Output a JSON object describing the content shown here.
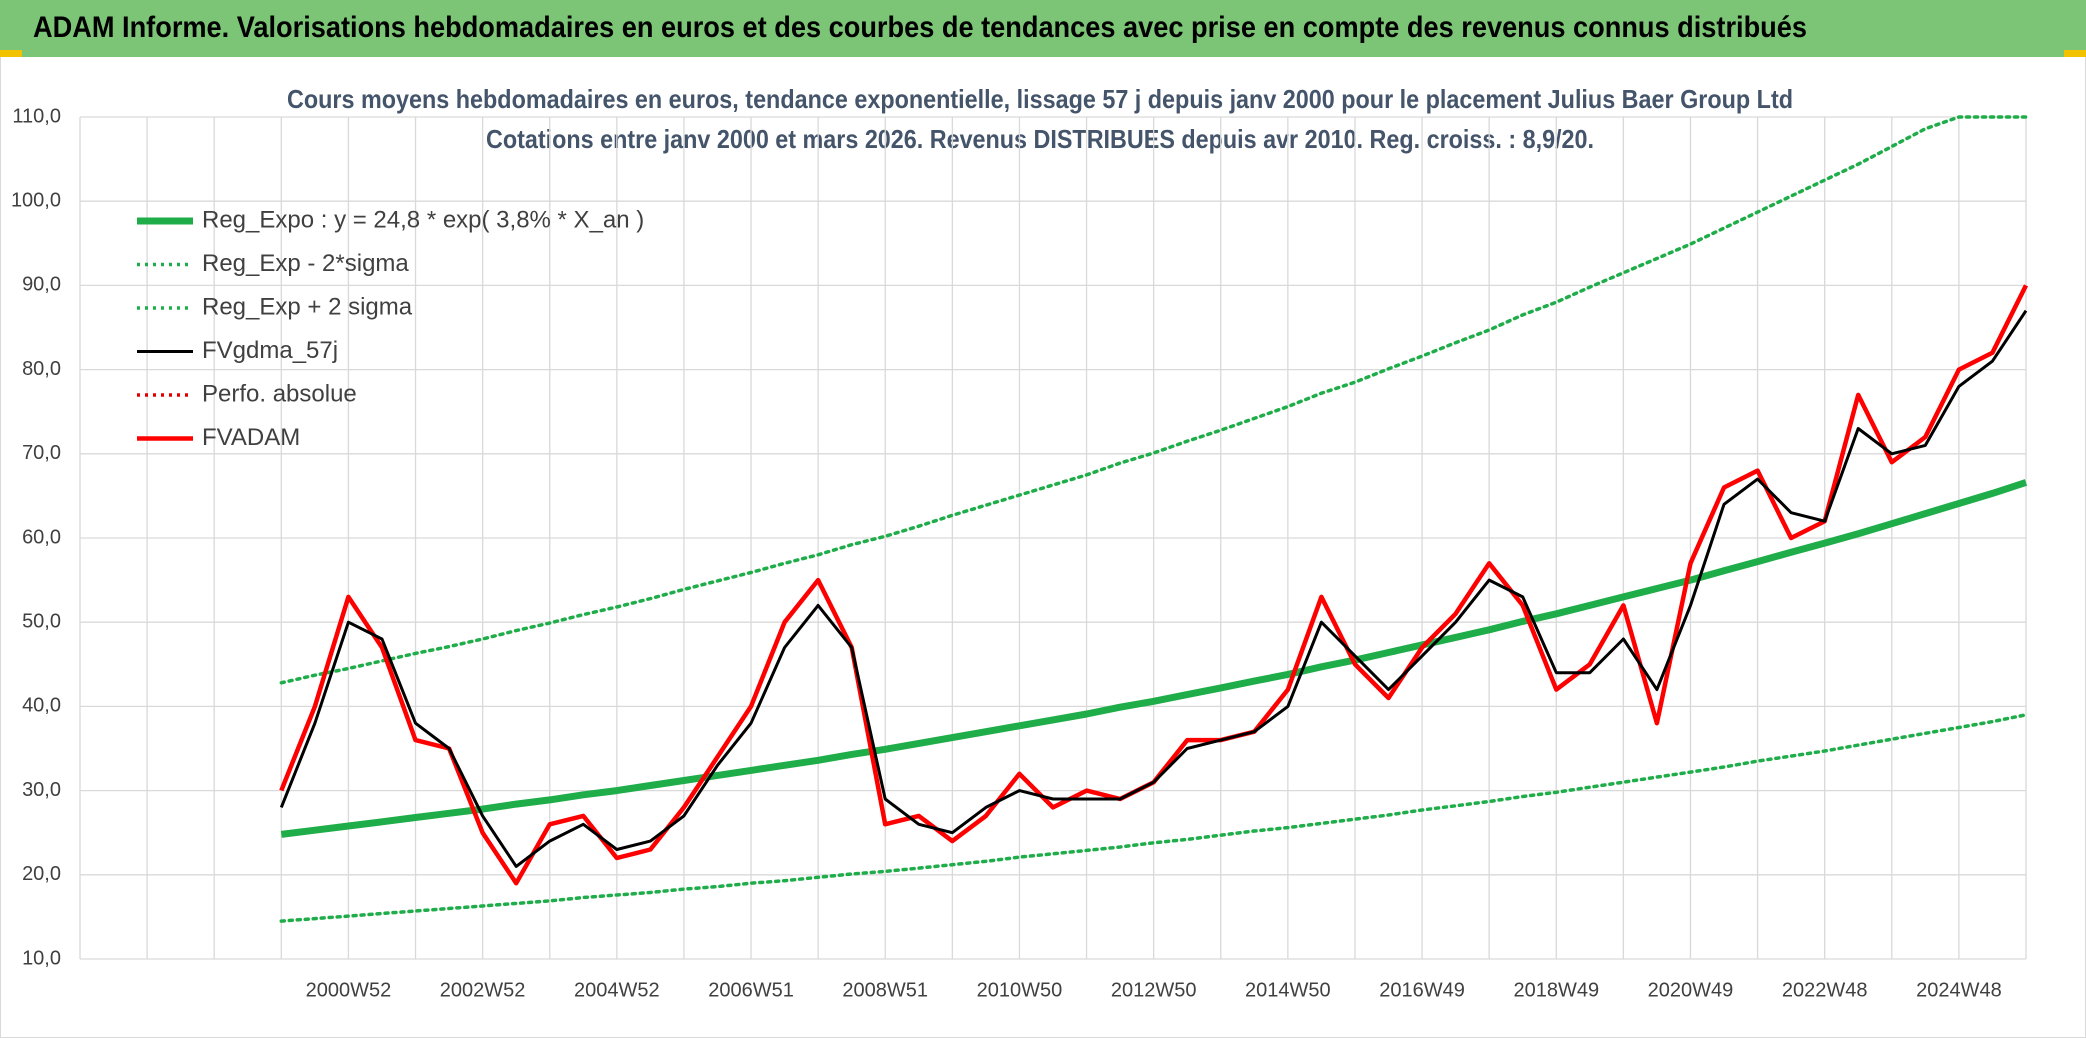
{
  "header": {
    "title": "ADAM Informe. Valorisations hebdomadaires en euros et des courbes de tendances avec prise en compte des revenus connus distribués"
  },
  "chart_data": {
    "type": "line",
    "title": "Cours moyens hebdomadaires en euros, tendance exponentielle, lissage 57 j depuis janv 2000 pour le placement Julius Baer Group Ltd",
    "subtitle": "Cotations entre janv 2000 et mars 2026. Revenus DISTRIBUES depuis avr 2010. Reg. croiss. : 8,9/20.",
    "categories": [
      null,
      null,
      null,
      null,
      null,
      null,
      null,
      null,
      "2000W52",
      null,
      null,
      null,
      "2002W52",
      null,
      null,
      null,
      "2004W52",
      null,
      null,
      null,
      "2006W51",
      null,
      null,
      null,
      "2008W51",
      null,
      null,
      null,
      "2010W50",
      null,
      null,
      null,
      "2012W50",
      null,
      null,
      null,
      "2014W50",
      null,
      null,
      null,
      "2016W49",
      null,
      null,
      null,
      "2018W49",
      null,
      null,
      null,
      "2020W49",
      null,
      null,
      null,
      "2022W48",
      null,
      null,
      null,
      "2024W48",
      null,
      null
    ],
    "ylim": [
      10,
      110
    ],
    "yticks": [
      {
        "value": 10,
        "label": "10,0"
      },
      {
        "value": 20,
        "label": "20,0"
      },
      {
        "value": 30,
        "label": "30,0"
      },
      {
        "value": 40,
        "label": "40,0"
      },
      {
        "value": 50,
        "label": "50,0"
      },
      {
        "value": 60,
        "label": "60,0"
      },
      {
        "value": 70,
        "label": "70,0"
      },
      {
        "value": 80,
        "label": "80,0"
      },
      {
        "value": 90,
        "label": "90,0"
      },
      {
        "value": 100,
        "label": "100,0"
      },
      {
        "value": 110,
        "label": "110,0"
      }
    ],
    "grid": true,
    "legend": "upper left",
    "series": [
      {
        "name": "Reg_Expo : y = 24,8 * exp( 3,8% *  X_an )",
        "color": "#1fad4a",
        "line_style": "thick",
        "values": [
          null,
          null,
          null,
          null,
          null,
          null,
          24.8,
          25.3,
          25.8,
          26.3,
          26.8,
          27.3,
          27.8,
          28.4,
          28.9,
          29.5,
          30.0,
          30.6,
          31.2,
          31.8,
          32.4,
          33.0,
          33.6,
          34.3,
          34.9,
          35.6,
          36.3,
          37.0,
          37.7,
          38.4,
          39.1,
          39.9,
          40.6,
          41.4,
          42.2,
          43.0,
          43.8,
          44.7,
          45.5,
          46.4,
          47.3,
          48.2,
          49.1,
          50.1,
          51.0,
          52.0,
          53.0,
          54.0,
          55.0,
          56.1,
          57.2,
          58.3,
          59.4,
          60.5,
          61.7,
          62.9,
          64.1,
          65.3,
          66.6
        ]
      },
      {
        "name": "Reg_Exp - 2*sigma",
        "color": "#1fad4a",
        "line_style": "dotted",
        "values": [
          null,
          null,
          null,
          null,
          null,
          null,
          14.5,
          14.8,
          15.1,
          15.4,
          15.7,
          16.0,
          16.3,
          16.6,
          16.9,
          17.3,
          17.6,
          17.9,
          18.3,
          18.6,
          19.0,
          19.3,
          19.7,
          20.1,
          20.4,
          20.8,
          21.2,
          21.6,
          22.1,
          22.5,
          22.9,
          23.3,
          23.8,
          24.2,
          24.7,
          25.2,
          25.6,
          26.1,
          26.6,
          27.1,
          27.7,
          28.2,
          28.7,
          29.3,
          29.8,
          30.4,
          31.0,
          31.6,
          32.2,
          32.8,
          33.5,
          34.1,
          34.7,
          35.4,
          36.1,
          36.8,
          37.5,
          38.2,
          39.0
        ]
      },
      {
        "name": "Reg_Exp + 2 sigma",
        "color": "#1fad4a",
        "line_style": "dotted",
        "values": [
          null,
          null,
          null,
          null,
          null,
          null,
          42.8,
          43.7,
          44.5,
          45.4,
          46.3,
          47.1,
          48.0,
          49.0,
          49.9,
          50.9,
          51.8,
          52.8,
          53.9,
          54.9,
          55.9,
          57.0,
          58.0,
          59.2,
          60.2,
          61.4,
          62.7,
          63.9,
          65.1,
          66.3,
          67.5,
          68.9,
          70.1,
          71.5,
          72.8,
          74.2,
          75.6,
          77.2,
          78.5,
          80.1,
          81.6,
          83.2,
          84.7,
          86.5,
          88.0,
          89.8,
          91.5,
          93.2,
          94.9,
          96.8,
          98.7,
          100.6,
          102.5,
          104.4,
          106.5,
          108.6,
          110,
          110,
          110
        ]
      },
      {
        "name": "FVgdma_57j",
        "color": "#000000",
        "line_style": "thin",
        "values": [
          null,
          null,
          null,
          null,
          null,
          null,
          28,
          38,
          50,
          48,
          38,
          35,
          27,
          21,
          24,
          26,
          23,
          24,
          27,
          33,
          38,
          47,
          52,
          47,
          29,
          26,
          25,
          28,
          30,
          29,
          29,
          29,
          31,
          35,
          36,
          37,
          40,
          50,
          46,
          42,
          46,
          50,
          55,
          53,
          44,
          44,
          48,
          42,
          52,
          64,
          67,
          63,
          62,
          73,
          70,
          71,
          78,
          81,
          87
        ]
      },
      {
        "name": "Perfo. absolue",
        "color": "#e00000",
        "line_style": "dotted",
        "values": [
          null,
          null,
          null,
          null,
          null,
          null,
          null,
          null,
          null,
          null,
          null,
          null,
          null,
          null,
          null,
          null,
          null,
          null,
          null,
          null,
          null,
          null,
          null,
          null,
          null,
          null,
          null,
          null,
          null,
          null,
          null,
          null,
          null,
          null,
          null,
          null,
          null,
          null,
          null,
          null,
          null,
          null,
          null,
          null,
          null,
          null,
          null,
          null,
          null,
          null,
          null,
          null,
          null,
          null,
          null,
          null,
          null,
          null,
          null
        ]
      },
      {
        "name": "FVADAM",
        "color": "#ff0000",
        "line_style": "medium",
        "values": [
          null,
          null,
          null,
          null,
          null,
          null,
          30,
          40,
          53,
          47,
          36,
          35,
          25,
          19,
          26,
          27,
          22,
          23,
          28,
          34,
          40,
          50,
          55,
          47,
          26,
          27,
          24,
          27,
          32,
          28,
          30,
          29,
          31,
          36,
          36,
          37,
          42,
          53,
          45,
          41,
          47,
          51,
          57,
          52,
          42,
          45,
          52,
          38,
          57,
          66,
          68,
          60,
          62,
          77,
          69,
          72,
          80,
          82,
          90
        ]
      }
    ]
  }
}
